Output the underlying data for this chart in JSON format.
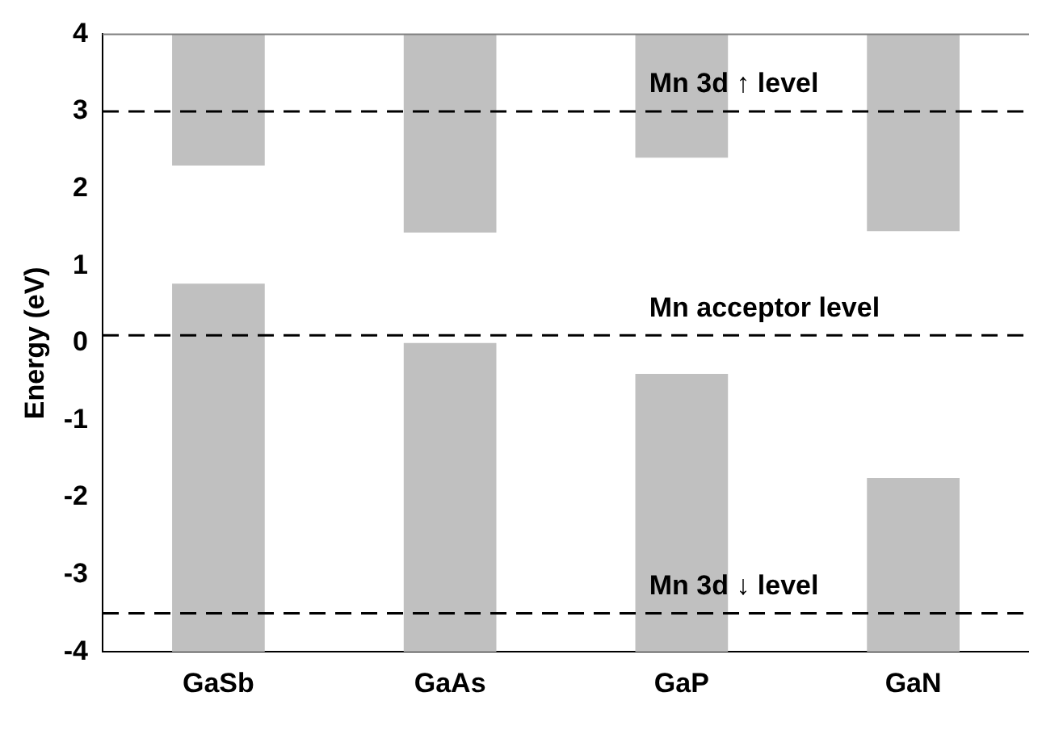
{
  "chart_data": {
    "type": "bar",
    "ylabel": "Energy (eV)",
    "categories": [
      "GaSb",
      "GaAs",
      "GaP",
      "GaN"
    ],
    "series": [
      {
        "color": "#c0c0c0",
        "base": [
          -4,
          -4,
          -4,
          -4
        ],
        "values": [
          4.77,
          4,
          3.6,
          2.25
        ]
      },
      {
        "color": "#c0c0c0",
        "base": [
          2.3,
          1.43,
          2.4,
          1.45
        ],
        "values": [
          1.7,
          2.57,
          1.6,
          2.55
        ]
      }
    ],
    "ylim": [
      -4,
      4
    ],
    "yticks": [
      -4,
      -3,
      -2,
      -1,
      0,
      1,
      2,
      3,
      4
    ],
    "grid": false,
    "legend": false,
    "ref_lines": [
      {
        "axis": "y",
        "value": 3,
        "label": "Mn 3d ↑ level",
        "color": "#000000",
        "line_style": "dashed"
      },
      {
        "axis": "y",
        "value": 0.1,
        "label": "Mn acceptor level",
        "color": "#000000",
        "line_style": "dashed"
      },
      {
        "axis": "y",
        "value": -3.5,
        "label": "Mn 3d ↓ level",
        "color": "#000000",
        "line_style": "dashed"
      }
    ]
  }
}
